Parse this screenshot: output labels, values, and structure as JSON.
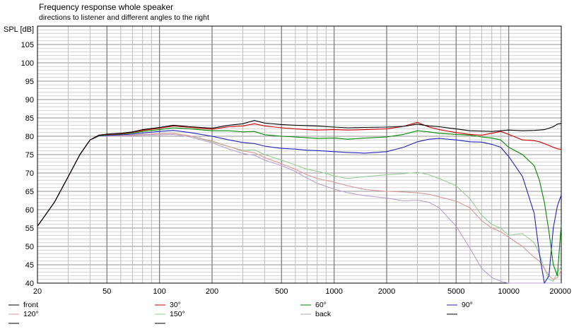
{
  "chart_data": {
    "type": "line",
    "title": "Frequency response whole speaker",
    "subtitle": "directions to listener and different angles to the right",
    "ylabel": "SPL [dB]",
    "xlabel": "",
    "x_scale": "log",
    "xlim": [
      20,
      20000
    ],
    "ylim": [
      40,
      110
    ],
    "grid": true,
    "legend_position": "bottom",
    "x_tick_labels": [
      "20",
      "50",
      "100",
      "200",
      "500",
      "1000",
      "2000",
      "5000",
      "10000",
      "20000"
    ],
    "y_tick_labels": [
      "40",
      "45",
      "50",
      "55",
      "60",
      "65",
      "70",
      "75",
      "80",
      "85",
      "90",
      "95",
      "100",
      "105"
    ],
    "x": [
      20,
      25,
      30,
      35,
      40,
      45,
      50,
      60,
      70,
      80,
      100,
      120,
      150,
      200,
      250,
      300,
      350,
      400,
      500,
      600,
      700,
      800,
      1000,
      1200,
      1500,
      2000,
      2500,
      3000,
      3500,
      4000,
      5000,
      6000,
      7000,
      8000,
      9000,
      10000,
      12000,
      14000,
      15000,
      16000,
      17000,
      18000,
      19000,
      20000
    ],
    "series": [
      {
        "name": "front",
        "color": "#000000",
        "values": [
          55.5,
          62,
          69,
          75,
          79,
          80.3,
          80.6,
          80.8,
          81.2,
          81.8,
          82.4,
          83,
          82.6,
          82.2,
          83,
          83.4,
          84.3,
          83.6,
          83.2,
          83,
          82.9,
          82.8,
          82.5,
          82.3,
          82.4,
          82.5,
          82.7,
          83.3,
          82.8,
          82.6,
          82,
          81.5,
          81.4,
          81.3,
          81.5,
          81.7,
          81.5,
          81.6,
          81.7,
          81.8,
          82.2,
          82.6,
          83.3,
          83.5
        ]
      },
      {
        "name": "30°",
        "color": "#cc0000",
        "values": [
          55.5,
          62,
          69,
          75,
          79,
          80.3,
          80.5,
          80.7,
          81.1,
          81.6,
          82.2,
          82.8,
          82.4,
          81.9,
          82.6,
          82.8,
          83.4,
          82.8,
          82.3,
          82,
          81.8,
          81.7,
          81.8,
          81.7,
          81.8,
          82,
          82.7,
          83.8,
          82.5,
          81.8,
          81,
          80.5,
          80.3,
          80.8,
          81.3,
          80.5,
          79,
          78.8,
          78.5,
          78,
          77.5,
          77,
          76.6,
          76.4
        ]
      },
      {
        "name": "60°",
        "color": "#008800",
        "values": [
          55.5,
          62,
          69,
          75,
          79,
          80.2,
          80.4,
          80.6,
          80.9,
          81.3,
          81.8,
          82.3,
          82,
          81.5,
          81.5,
          81.2,
          81.3,
          80.4,
          80,
          79.8,
          79.6,
          79.4,
          79.5,
          79.2,
          79.5,
          79.8,
          80.5,
          81.5,
          81.2,
          80.8,
          80.5,
          80.3,
          79.8,
          79.5,
          79,
          77,
          75,
          72,
          68,
          62,
          54,
          45,
          42,
          56
        ]
      },
      {
        "name": "90°",
        "color": "#2222bb",
        "values": [
          55.5,
          62,
          69,
          75,
          79,
          80.1,
          80.2,
          80.4,
          80.6,
          80.9,
          81.3,
          81.6,
          81,
          80,
          79,
          78.3,
          78,
          77.3,
          76.7,
          76.5,
          76.2,
          76.1,
          75.8,
          75.6,
          75.4,
          75.8,
          77,
          78.5,
          79.2,
          79.4,
          79,
          78.5,
          78.4,
          77.8,
          77,
          74.5,
          69,
          59,
          48,
          40,
          42,
          55,
          61,
          64
        ]
      },
      {
        "name": "120°",
        "color": "#dd9999",
        "values": [
          55.5,
          62,
          69,
          75,
          79,
          80,
          80.1,
          80.2,
          80.3,
          80.5,
          80.7,
          80.8,
          80.1,
          78.7,
          77.2,
          76,
          75.5,
          74.2,
          72.5,
          71,
          69.5,
          68.5,
          67.5,
          66.5,
          65.5,
          65,
          64.8,
          64.6,
          64.2,
          63.5,
          62.3,
          60.5,
          57,
          55,
          54,
          52.5,
          50,
          47,
          46,
          44,
          42,
          41,
          41.5,
          43.5
        ]
      },
      {
        "name": "150°",
        "color": "#99cc99",
        "values": [
          55.5,
          62,
          69,
          75,
          79,
          80,
          80.1,
          80.2,
          80.3,
          80.5,
          80.7,
          80.8,
          80.1,
          78.5,
          77.2,
          76.2,
          76.3,
          75,
          73.5,
          72.2,
          71,
          70.5,
          69.2,
          68.5,
          69,
          69.5,
          69.8,
          70.2,
          69.5,
          68.5,
          66.5,
          63,
          58.5,
          56,
          55,
          53,
          53.5,
          51,
          48,
          44,
          41,
          40.5,
          43,
          44.5
        ]
      },
      {
        "name": "back",
        "color": "#b8a0d0",
        "values": [
          55.5,
          62,
          69,
          75,
          79,
          80,
          80,
          80.1,
          80.2,
          80.3,
          80.4,
          80.5,
          79.8,
          78.2,
          76.5,
          75.3,
          74.8,
          73.5,
          72,
          70.4,
          68.6,
          67.2,
          65.6,
          64.6,
          63.8,
          63.2,
          62.4,
          62.6,
          62,
          60.5,
          55.5,
          49.5,
          44,
          41.5,
          40.5,
          40,
          40,
          40,
          40,
          40,
          40,
          40,
          40,
          40
        ]
      }
    ],
    "legend_blank_slots": 3
  }
}
